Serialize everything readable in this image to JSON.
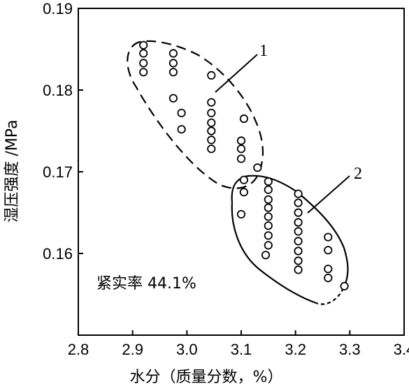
{
  "chart_data": {
    "type": "scatter",
    "xlabel": "水分（质量分数，%）",
    "ylabel": "湿压强度 /MPa",
    "xlim": [
      2.8,
      3.4
    ],
    "ylim": [
      0.15,
      0.19
    ],
    "xticks": [
      "2.8",
      "2.9",
      "3.0",
      "3.1",
      "3.2",
      "3.3",
      "3.4"
    ],
    "yticks": [
      "0.16",
      "0.17",
      "0.18",
      "0.19"
    ],
    "grid": false,
    "annotation": "紧实率 44.1%",
    "regions": [
      {
        "label": "1",
        "style": "dashed"
      },
      {
        "label": "2",
        "style": "solid / dash-dot"
      }
    ],
    "points": [
      {
        "x": 2.92,
        "y": 0.1855
      },
      {
        "x": 2.92,
        "y": 0.1845
      },
      {
        "x": 2.92,
        "y": 0.1833
      },
      {
        "x": 2.92,
        "y": 0.1822
      },
      {
        "x": 2.975,
        "y": 0.1845
      },
      {
        "x": 2.975,
        "y": 0.1833
      },
      {
        "x": 2.975,
        "y": 0.1822
      },
      {
        "x": 2.975,
        "y": 0.179
      },
      {
        "x": 2.99,
        "y": 0.1772
      },
      {
        "x": 2.99,
        "y": 0.1752
      },
      {
        "x": 3.045,
        "y": 0.1818
      },
      {
        "x": 3.045,
        "y": 0.1785
      },
      {
        "x": 3.045,
        "y": 0.1772
      },
      {
        "x": 3.045,
        "y": 0.176
      },
      {
        "x": 3.045,
        "y": 0.175
      },
      {
        "x": 3.045,
        "y": 0.1739
      },
      {
        "x": 3.045,
        "y": 0.1728
      },
      {
        "x": 3.1,
        "y": 0.1738
      },
      {
        "x": 3.1,
        "y": 0.1728
      },
      {
        "x": 3.1,
        "y": 0.1716
      },
      {
        "x": 3.105,
        "y": 0.1765
      },
      {
        "x": 3.105,
        "y": 0.169
      },
      {
        "x": 3.105,
        "y": 0.1675
      },
      {
        "x": 3.1,
        "y": 0.1648
      },
      {
        "x": 3.13,
        "y": 0.1705
      },
      {
        "x": 3.15,
        "y": 0.1688
      },
      {
        "x": 3.15,
        "y": 0.1678
      },
      {
        "x": 3.15,
        "y": 0.1666
      },
      {
        "x": 3.15,
        "y": 0.1656
      },
      {
        "x": 3.15,
        "y": 0.1645
      },
      {
        "x": 3.15,
        "y": 0.1634
      },
      {
        "x": 3.15,
        "y": 0.1622
      },
      {
        "x": 3.15,
        "y": 0.161
      },
      {
        "x": 3.145,
        "y": 0.1598
      },
      {
        "x": 3.205,
        "y": 0.1673
      },
      {
        "x": 3.205,
        "y": 0.1662
      },
      {
        "x": 3.205,
        "y": 0.165
      },
      {
        "x": 3.205,
        "y": 0.1638
      },
      {
        "x": 3.205,
        "y": 0.1627
      },
      {
        "x": 3.205,
        "y": 0.1615
      },
      {
        "x": 3.205,
        "y": 0.1603
      },
      {
        "x": 3.205,
        "y": 0.1591
      },
      {
        "x": 3.205,
        "y": 0.158
      },
      {
        "x": 3.26,
        "y": 0.162
      },
      {
        "x": 3.26,
        "y": 0.1604
      },
      {
        "x": 3.26,
        "y": 0.1581
      },
      {
        "x": 3.26,
        "y": 0.157
      },
      {
        "x": 3.29,
        "y": 0.156
      }
    ]
  }
}
